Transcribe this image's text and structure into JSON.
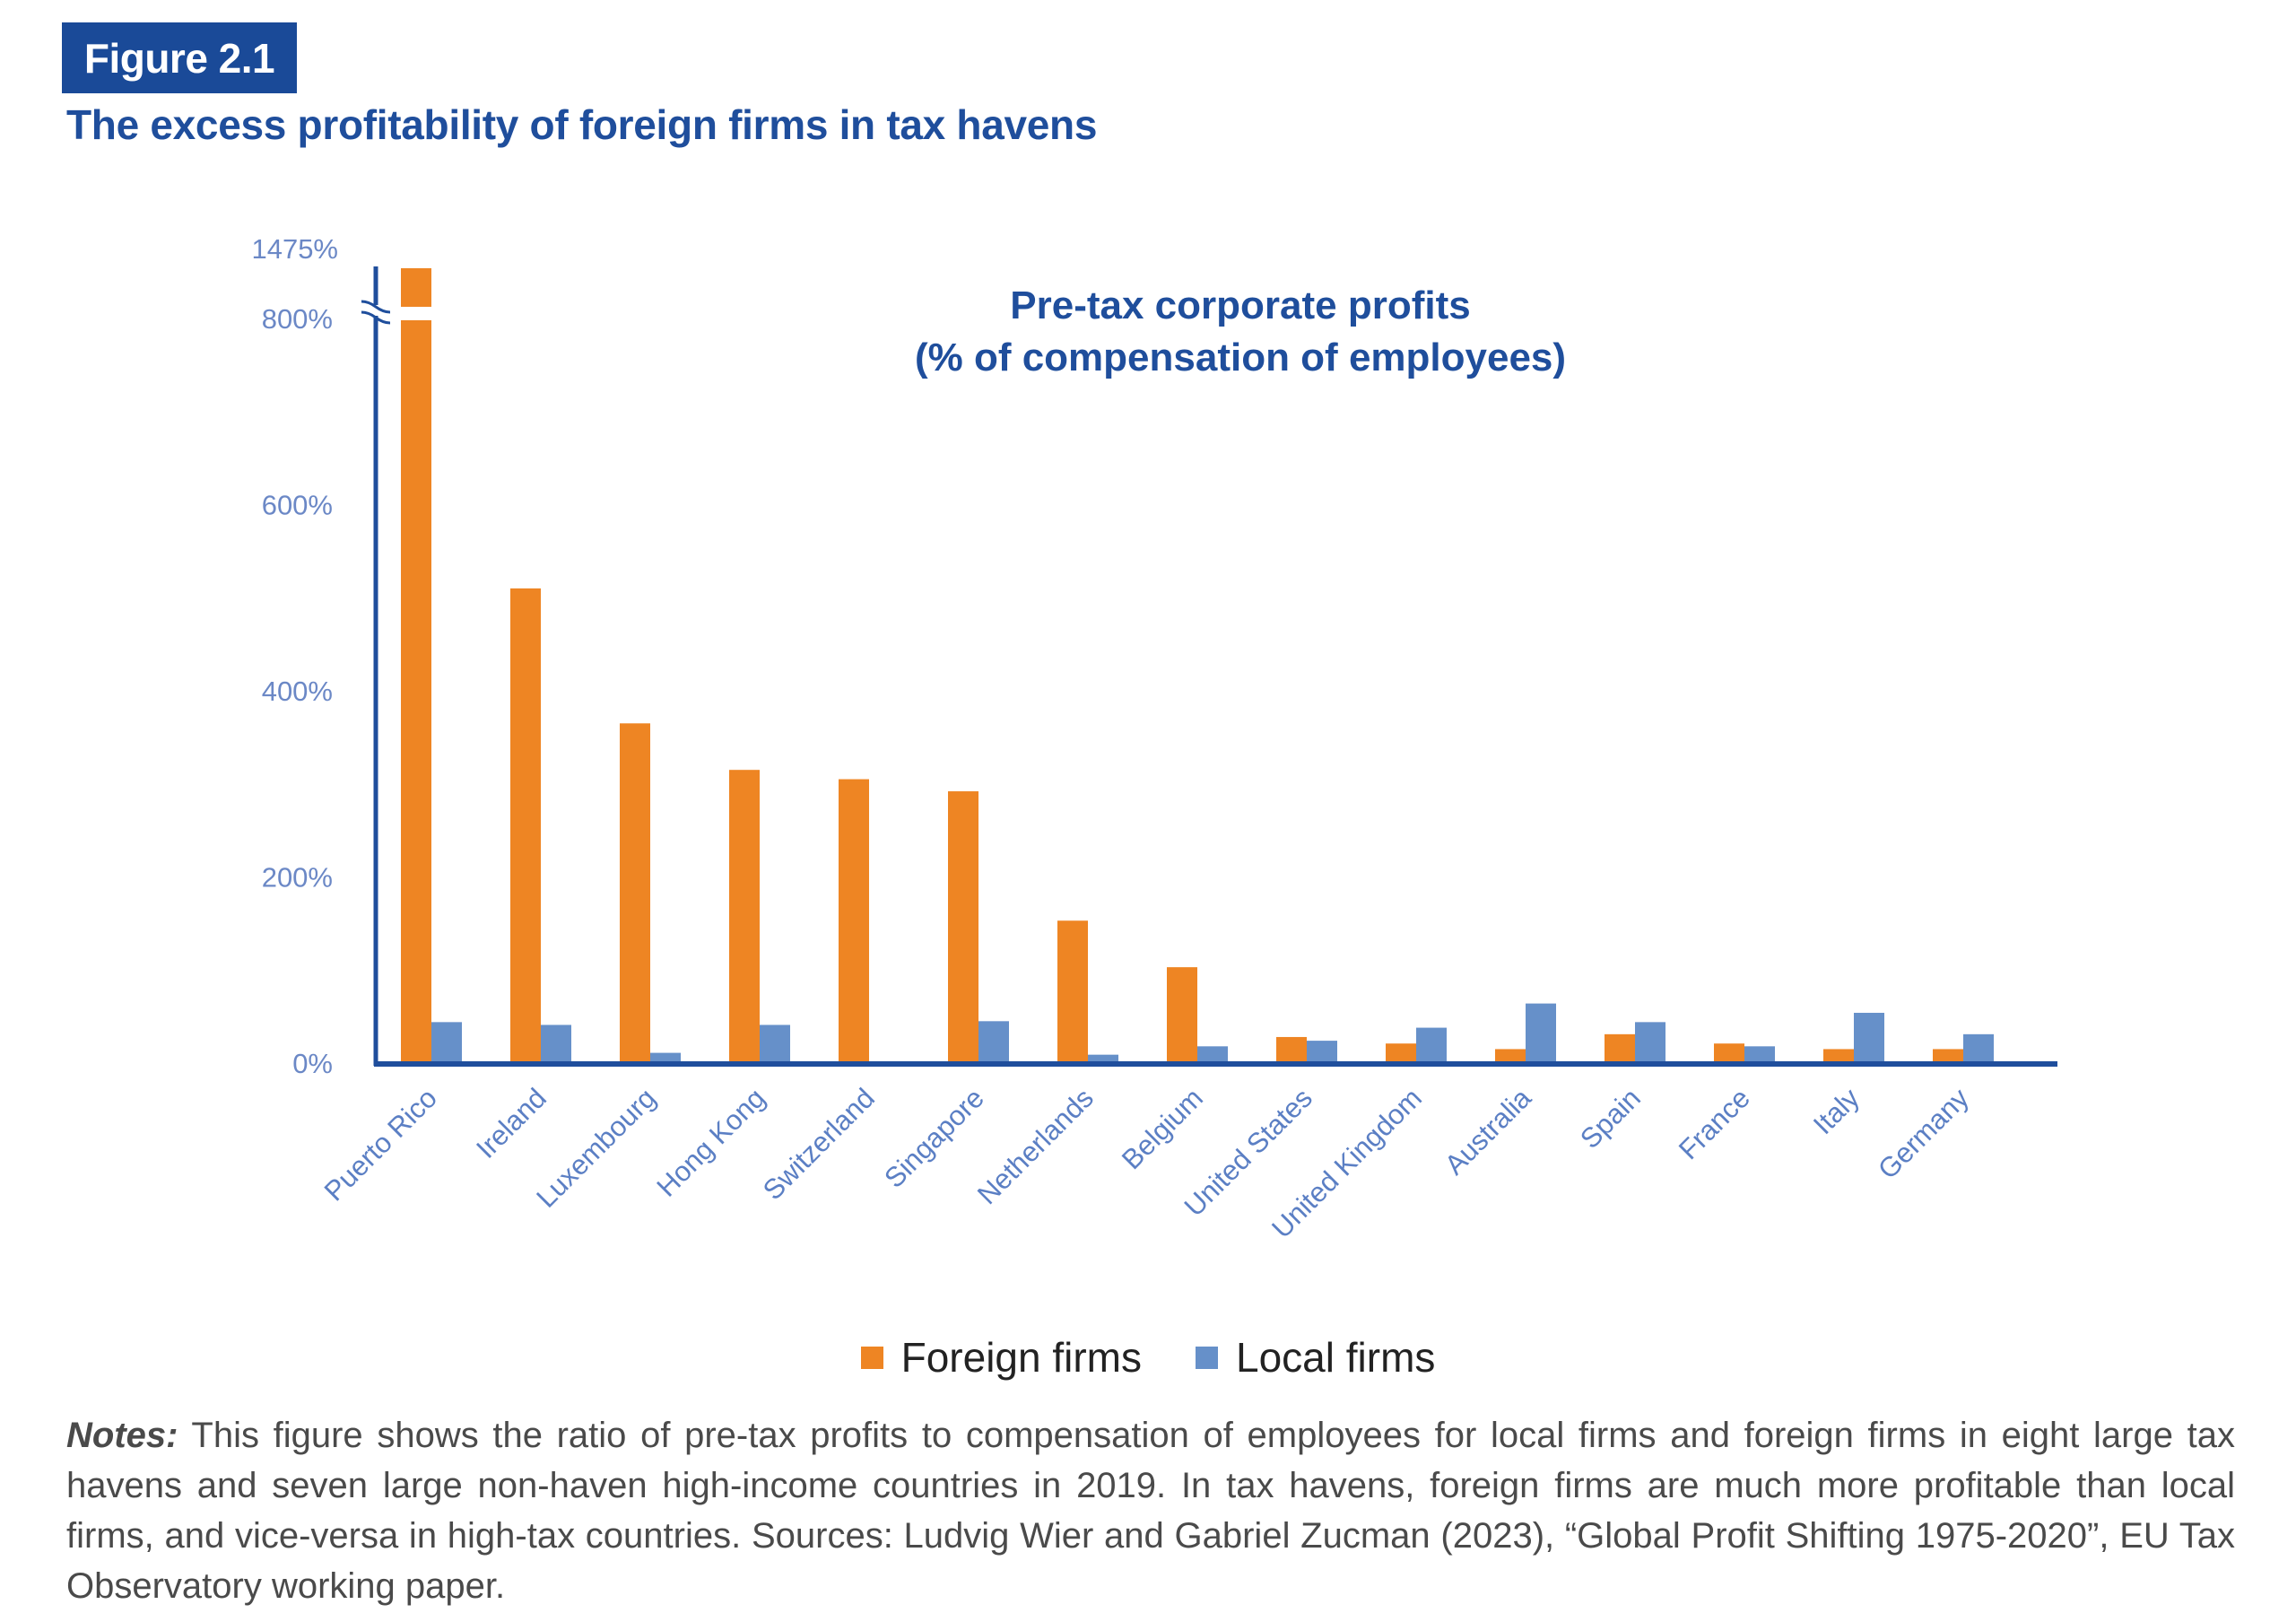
{
  "figure": {
    "badge": "Figure 2.1",
    "title": "The excess profitability of foreign firms in tax havens"
  },
  "colors": {
    "foreign": "#EE8523",
    "local": "#6690C9",
    "axis": "#1F4E9C",
    "badge": "#1A4A98"
  },
  "legend": {
    "foreign_label": "Foreign firms",
    "local_label": "Local firms"
  },
  "notes": {
    "prefix": "Notes:",
    "text": " This figure shows the ratio of pre-tax profits to compensation of employees for local firms and foreign firms in eight large tax havens and seven large non-haven high-income countries in 2019. In tax havens, foreign firms are much more profitable than local firms, and vice-versa in high-tax countries. Sources: Ludvig Wier and Gabriel Zucman (2023), “Global Profit Shifting 1975-2020”, EU Tax Observatory working paper."
  },
  "chart_data": {
    "type": "bar",
    "title": "Pre-tax corporate profits",
    "subtitle": "(% of compensation of employees)",
    "xlabel": "",
    "ylabel": "",
    "ylim": [
      0,
      800
    ],
    "axis_break": {
      "from": 800,
      "to": 1475,
      "top_label": "1475%"
    },
    "yticks": [
      {
        "value": 0,
        "label": "0%"
      },
      {
        "value": 200,
        "label": "200%"
      },
      {
        "value": 400,
        "label": "400%"
      },
      {
        "value": 600,
        "label": "600%"
      },
      {
        "value": 800,
        "label": "800%"
      }
    ],
    "grid": false,
    "legend_position": "bottom",
    "categories": [
      "Puerto Rico",
      "Ireland",
      "Luxembourg",
      "Hong Kong",
      "Switzerland",
      "Singapore",
      "Netherlands",
      "Belgium",
      "United States",
      "United Kingdom",
      "Australia",
      "Spain",
      "France",
      "Italy",
      "Germany"
    ],
    "series": [
      {
        "name": "Foreign firms",
        "values": [
          1475,
          510,
          365,
          315,
          305,
          292,
          153,
          103,
          28,
          21,
          15,
          31,
          21,
          15,
          15
        ]
      },
      {
        "name": "Local firms",
        "values": [
          44,
          41,
          11,
          41,
          0,
          45,
          9,
          18,
          24,
          38,
          64,
          44,
          18,
          54,
          31
        ]
      }
    ]
  }
}
